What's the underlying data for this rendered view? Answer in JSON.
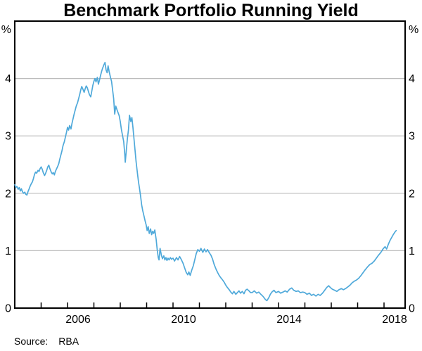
{
  "title": "Benchmark Portfolio Running Yield",
  "source": {
    "label": "Source:",
    "value": "RBA"
  },
  "chart_data": {
    "type": "line",
    "title": "Benchmark Portfolio Running Yield",
    "unit_left": "%",
    "unit_right": "%",
    "ylim": [
      0,
      5
    ],
    "yticks": [
      0,
      1,
      2,
      3,
      4
    ],
    "xlim": [
      2004,
      2018.8
    ],
    "xticks": [
      2004,
      2005,
      2006,
      2007,
      2008,
      2009,
      2010,
      2011,
      2012,
      2013,
      2014,
      2015,
      2016,
      2017,
      2018
    ],
    "xtick_labels": [
      "2006",
      "2010",
      "2014",
      "2018"
    ],
    "xtick_label_years": [
      2006,
      2010,
      2014,
      2018
    ],
    "grid": true,
    "legend": "none",
    "line_color": "#4fa9da",
    "grid_color": "#bcbcbc",
    "axis_color": "#000000",
    "series": [
      {
        "name": "Benchmark Portfolio Running Yield",
        "points": [
          [
            2004.0,
            2.15
          ],
          [
            2004.04,
            2.1
          ],
          [
            2004.08,
            2.12
          ],
          [
            2004.13,
            2.07
          ],
          [
            2004.17,
            2.1
          ],
          [
            2004.21,
            2.04
          ],
          [
            2004.25,
            2.08
          ],
          [
            2004.29,
            2.03
          ],
          [
            2004.33,
            2.0
          ],
          [
            2004.38,
            2.02
          ],
          [
            2004.42,
            1.98
          ],
          [
            2004.46,
            1.97
          ],
          [
            2004.5,
            2.03
          ],
          [
            2004.54,
            2.07
          ],
          [
            2004.58,
            2.12
          ],
          [
            2004.63,
            2.17
          ],
          [
            2004.67,
            2.2
          ],
          [
            2004.71,
            2.26
          ],
          [
            2004.75,
            2.33
          ],
          [
            2004.79,
            2.37
          ],
          [
            2004.83,
            2.35
          ],
          [
            2004.88,
            2.4
          ],
          [
            2004.92,
            2.38
          ],
          [
            2004.96,
            2.43
          ],
          [
            2005.0,
            2.46
          ],
          [
            2005.04,
            2.42
          ],
          [
            2005.08,
            2.36
          ],
          [
            2005.13,
            2.31
          ],
          [
            2005.17,
            2.35
          ],
          [
            2005.21,
            2.4
          ],
          [
            2005.25,
            2.46
          ],
          [
            2005.29,
            2.49
          ],
          [
            2005.33,
            2.43
          ],
          [
            2005.38,
            2.37
          ],
          [
            2005.42,
            2.34
          ],
          [
            2005.46,
            2.36
          ],
          [
            2005.5,
            2.32
          ],
          [
            2005.54,
            2.38
          ],
          [
            2005.58,
            2.42
          ],
          [
            2005.63,
            2.47
          ],
          [
            2005.67,
            2.52
          ],
          [
            2005.71,
            2.6
          ],
          [
            2005.75,
            2.67
          ],
          [
            2005.79,
            2.74
          ],
          [
            2005.83,
            2.83
          ],
          [
            2005.88,
            2.9
          ],
          [
            2005.92,
            2.98
          ],
          [
            2005.96,
            3.06
          ],
          [
            2006.0,
            3.15
          ],
          [
            2006.04,
            3.1
          ],
          [
            2006.08,
            3.18
          ],
          [
            2006.13,
            3.12
          ],
          [
            2006.17,
            3.22
          ],
          [
            2006.21,
            3.3
          ],
          [
            2006.25,
            3.38
          ],
          [
            2006.29,
            3.45
          ],
          [
            2006.33,
            3.52
          ],
          [
            2006.38,
            3.58
          ],
          [
            2006.42,
            3.65
          ],
          [
            2006.46,
            3.72
          ],
          [
            2006.5,
            3.8
          ],
          [
            2006.54,
            3.86
          ],
          [
            2006.58,
            3.82
          ],
          [
            2006.63,
            3.76
          ],
          [
            2006.67,
            3.82
          ],
          [
            2006.71,
            3.87
          ],
          [
            2006.75,
            3.84
          ],
          [
            2006.79,
            3.78
          ],
          [
            2006.83,
            3.72
          ],
          [
            2006.88,
            3.68
          ],
          [
            2006.92,
            3.78
          ],
          [
            2006.96,
            3.88
          ],
          [
            2007.0,
            3.95
          ],
          [
            2007.04,
            4.0
          ],
          [
            2007.08,
            3.94
          ],
          [
            2007.13,
            4.02
          ],
          [
            2007.17,
            3.9
          ],
          [
            2007.21,
            3.97
          ],
          [
            2007.25,
            4.05
          ],
          [
            2007.29,
            4.12
          ],
          [
            2007.33,
            4.18
          ],
          [
            2007.38,
            4.24
          ],
          [
            2007.42,
            4.28
          ],
          [
            2007.46,
            4.15
          ],
          [
            2007.5,
            4.1
          ],
          [
            2007.54,
            4.22
          ],
          [
            2007.58,
            4.12
          ],
          [
            2007.63,
            4.02
          ],
          [
            2007.67,
            3.95
          ],
          [
            2007.71,
            3.8
          ],
          [
            2007.75,
            3.65
          ],
          [
            2007.79,
            3.38
          ],
          [
            2007.83,
            3.52
          ],
          [
            2007.88,
            3.45
          ],
          [
            2007.92,
            3.4
          ],
          [
            2007.96,
            3.35
          ],
          [
            2008.0,
            3.25
          ],
          [
            2008.04,
            3.12
          ],
          [
            2008.08,
            3.02
          ],
          [
            2008.13,
            2.9
          ],
          [
            2008.17,
            2.68
          ],
          [
            2008.19,
            2.54
          ],
          [
            2008.23,
            2.75
          ],
          [
            2008.27,
            2.95
          ],
          [
            2008.31,
            3.1
          ],
          [
            2008.35,
            3.36
          ],
          [
            2008.4,
            3.25
          ],
          [
            2008.44,
            3.32
          ],
          [
            2008.48,
            3.15
          ],
          [
            2008.52,
            2.95
          ],
          [
            2008.56,
            2.75
          ],
          [
            2008.6,
            2.55
          ],
          [
            2008.65,
            2.35
          ],
          [
            2008.69,
            2.2
          ],
          [
            2008.73,
            2.08
          ],
          [
            2008.77,
            1.95
          ],
          [
            2008.81,
            1.8
          ],
          [
            2008.85,
            1.7
          ],
          [
            2008.9,
            1.6
          ],
          [
            2008.94,
            1.52
          ],
          [
            2008.98,
            1.45
          ],
          [
            2009.02,
            1.35
          ],
          [
            2009.06,
            1.42
          ],
          [
            2009.1,
            1.3
          ],
          [
            2009.15,
            1.38
          ],
          [
            2009.19,
            1.28
          ],
          [
            2009.23,
            1.34
          ],
          [
            2009.27,
            1.3
          ],
          [
            2009.31,
            1.36
          ],
          [
            2009.36,
            1.2
          ],
          [
            2009.4,
            1.02
          ],
          [
            2009.44,
            0.88
          ],
          [
            2009.47,
            0.84
          ],
          [
            2009.51,
            1.04
          ],
          [
            2009.56,
            0.92
          ],
          [
            2009.6,
            0.86
          ],
          [
            2009.65,
            0.91
          ],
          [
            2009.69,
            0.84
          ],
          [
            2009.73,
            0.88
          ],
          [
            2009.77,
            0.83
          ],
          [
            2009.81,
            0.87
          ],
          [
            2009.85,
            0.84
          ],
          [
            2009.9,
            0.88
          ],
          [
            2009.94,
            0.85
          ],
          [
            2010.0,
            0.87
          ],
          [
            2010.06,
            0.82
          ],
          [
            2010.13,
            0.88
          ],
          [
            2010.19,
            0.84
          ],
          [
            2010.25,
            0.9
          ],
          [
            2010.31,
            0.85
          ],
          [
            2010.38,
            0.78
          ],
          [
            2010.44,
            0.7
          ],
          [
            2010.5,
            0.62
          ],
          [
            2010.56,
            0.58
          ],
          [
            2010.6,
            0.63
          ],
          [
            2010.65,
            0.57
          ],
          [
            2010.71,
            0.66
          ],
          [
            2010.77,
            0.74
          ],
          [
            2010.83,
            0.85
          ],
          [
            2010.88,
            0.95
          ],
          [
            2010.94,
            1.02
          ],
          [
            2011.0,
            0.99
          ],
          [
            2011.06,
            1.04
          ],
          [
            2011.13,
            0.97
          ],
          [
            2011.19,
            1.03
          ],
          [
            2011.25,
            0.98
          ],
          [
            2011.31,
            1.02
          ],
          [
            2011.38,
            0.96
          ],
          [
            2011.44,
            0.92
          ],
          [
            2011.5,
            0.85
          ],
          [
            2011.56,
            0.76
          ],
          [
            2011.63,
            0.68
          ],
          [
            2011.69,
            0.62
          ],
          [
            2011.75,
            0.57
          ],
          [
            2011.81,
            0.53
          ],
          [
            2011.88,
            0.49
          ],
          [
            2011.94,
            0.45
          ],
          [
            2012.0,
            0.4
          ],
          [
            2012.06,
            0.36
          ],
          [
            2012.13,
            0.32
          ],
          [
            2012.19,
            0.28
          ],
          [
            2012.25,
            0.25
          ],
          [
            2012.31,
            0.29
          ],
          [
            2012.38,
            0.24
          ],
          [
            2012.44,
            0.27
          ],
          [
            2012.5,
            0.3
          ],
          [
            2012.56,
            0.26
          ],
          [
            2012.63,
            0.29
          ],
          [
            2012.69,
            0.25
          ],
          [
            2012.75,
            0.31
          ],
          [
            2012.81,
            0.33
          ],
          [
            2012.88,
            0.3
          ],
          [
            2012.94,
            0.27
          ],
          [
            2013.0,
            0.27
          ],
          [
            2013.08,
            0.3
          ],
          [
            2013.17,
            0.26
          ],
          [
            2013.25,
            0.28
          ],
          [
            2013.33,
            0.24
          ],
          [
            2013.42,
            0.2
          ],
          [
            2013.5,
            0.15
          ],
          [
            2013.56,
            0.13
          ],
          [
            2013.63,
            0.18
          ],
          [
            2013.69,
            0.24
          ],
          [
            2013.75,
            0.28
          ],
          [
            2013.83,
            0.31
          ],
          [
            2013.9,
            0.27
          ],
          [
            2014.0,
            0.29
          ],
          [
            2014.08,
            0.26
          ],
          [
            2014.17,
            0.28
          ],
          [
            2014.25,
            0.3
          ],
          [
            2014.33,
            0.28
          ],
          [
            2014.42,
            0.33
          ],
          [
            2014.5,
            0.35
          ],
          [
            2014.58,
            0.31
          ],
          [
            2014.67,
            0.29
          ],
          [
            2014.75,
            0.3
          ],
          [
            2014.83,
            0.27
          ],
          [
            2014.92,
            0.28
          ],
          [
            2015.0,
            0.27
          ],
          [
            2015.08,
            0.24
          ],
          [
            2015.17,
            0.26
          ],
          [
            2015.25,
            0.22
          ],
          [
            2015.33,
            0.24
          ],
          [
            2015.42,
            0.21
          ],
          [
            2015.5,
            0.24
          ],
          [
            2015.58,
            0.22
          ],
          [
            2015.67,
            0.26
          ],
          [
            2015.75,
            0.31
          ],
          [
            2015.83,
            0.36
          ],
          [
            2015.9,
            0.39
          ],
          [
            2015.96,
            0.36
          ],
          [
            2016.04,
            0.33
          ],
          [
            2016.13,
            0.31
          ],
          [
            2016.21,
            0.29
          ],
          [
            2016.29,
            0.32
          ],
          [
            2016.38,
            0.34
          ],
          [
            2016.46,
            0.32
          ],
          [
            2016.54,
            0.34
          ],
          [
            2016.63,
            0.37
          ],
          [
            2016.71,
            0.4
          ],
          [
            2016.79,
            0.44
          ],
          [
            2016.88,
            0.47
          ],
          [
            2016.96,
            0.49
          ],
          [
            2017.04,
            0.52
          ],
          [
            2017.13,
            0.57
          ],
          [
            2017.21,
            0.62
          ],
          [
            2017.29,
            0.67
          ],
          [
            2017.38,
            0.72
          ],
          [
            2017.46,
            0.76
          ],
          [
            2017.54,
            0.78
          ],
          [
            2017.63,
            0.82
          ],
          [
            2017.71,
            0.87
          ],
          [
            2017.79,
            0.92
          ],
          [
            2017.88,
            0.97
          ],
          [
            2017.96,
            1.03
          ],
          [
            2018.04,
            1.07
          ],
          [
            2018.1,
            1.03
          ],
          [
            2018.17,
            1.12
          ],
          [
            2018.23,
            1.18
          ],
          [
            2018.29,
            1.23
          ],
          [
            2018.35,
            1.28
          ],
          [
            2018.42,
            1.33
          ],
          [
            2018.46,
            1.35
          ]
        ]
      }
    ]
  }
}
